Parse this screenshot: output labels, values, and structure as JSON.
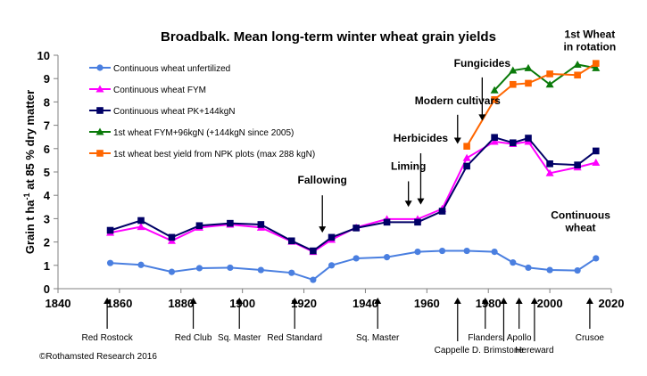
{
  "chart_data": {
    "type": "line",
    "title": "Broadbalk. Mean long-term winter wheat grain yields",
    "ylabel": "Grain t ha-1 at 85 % dry matter",
    "ylabel_main": "Grain t ha",
    "ylabel_sup": "-1",
    "ylabel_rest": " at 85 % dry matter",
    "xlabel": "",
    "xlim": [
      1840,
      2020
    ],
    "ylim": [
      0,
      10
    ],
    "xticks": [
      1840,
      1860,
      1880,
      1900,
      1920,
      1940,
      1960,
      1980,
      2000,
      2020
    ],
    "yticks": [
      0,
      1,
      2,
      3,
      4,
      5,
      6,
      7,
      8,
      9,
      10
    ],
    "legend_position": "top-left",
    "series": [
      {
        "name": "Continuous wheat unfertilized",
        "color": "#4a7fe0",
        "marker": "circle",
        "x": [
          1857,
          1867,
          1877,
          1886,
          1896,
          1906,
          1916,
          1923,
          1929,
          1937,
          1947,
          1957,
          1965,
          1973,
          1982,
          1988,
          1993,
          2000,
          2009,
          2015
        ],
        "y": [
          1.1,
          1.02,
          0.72,
          0.88,
          0.9,
          0.8,
          0.68,
          0.38,
          1.0,
          1.3,
          1.35,
          1.58,
          1.62,
          1.62,
          1.58,
          1.12,
          0.9,
          0.8,
          0.78,
          1.3
        ]
      },
      {
        "name": "Continuous wheat FYM",
        "color": "#ff00ff",
        "marker": "triangle",
        "x": [
          1857,
          1867,
          1877,
          1886,
          1896,
          1906,
          1916,
          1923,
          1929,
          1937,
          1947,
          1957,
          1965,
          1973,
          1982,
          1988,
          1993,
          2000,
          2009,
          2015
        ],
        "y": [
          2.4,
          2.65,
          2.05,
          2.62,
          2.75,
          2.62,
          2.02,
          1.58,
          2.1,
          2.62,
          2.98,
          2.98,
          3.42,
          5.6,
          6.3,
          6.2,
          6.3,
          4.95,
          5.2,
          5.4
        ]
      },
      {
        "name": "Continuous wheat PK+144kgN",
        "color": "#000066",
        "marker": "square",
        "x": [
          1857,
          1867,
          1877,
          1886,
          1896,
          1906,
          1916,
          1923,
          1929,
          1937,
          1947,
          1957,
          1965,
          1973,
          1982,
          1988,
          1993,
          2000,
          2009,
          2015
        ],
        "y": [
          2.5,
          2.92,
          2.2,
          2.7,
          2.8,
          2.75,
          2.05,
          1.62,
          2.2,
          2.6,
          2.85,
          2.85,
          3.32,
          5.25,
          6.48,
          6.25,
          6.45,
          5.35,
          5.3,
          5.9
        ]
      },
      {
        "name": "1st wheat FYM+96kgN (+144kgN since 2005)",
        "color": "#0a7a0a",
        "marker": "triangle",
        "x": [
          1982,
          1988,
          1993,
          2000,
          2009,
          2015
        ],
        "y": [
          8.5,
          9.35,
          9.45,
          8.75,
          9.6,
          9.45
        ]
      },
      {
        "name": "1st wheat best yield from NPK plots (max 288 kgN)",
        "color": "#ff6600",
        "marker": "square",
        "x": [
          1973,
          1982,
          1988,
          1993,
          2000,
          2009,
          2015
        ],
        "y": [
          6.1,
          8.1,
          8.75,
          8.8,
          9.2,
          9.15,
          9.65
        ]
      }
    ],
    "event_annotations": [
      {
        "label": "Fallowing",
        "year": 1926,
        "text_y": 4.5,
        "arrow_from": 4.0,
        "arrow_to": 2.4
      },
      {
        "label": "Liming",
        "year": 1954,
        "text_y": 5.1,
        "arrow_from": 4.6,
        "arrow_to": 3.5
      },
      {
        "label": "Herbicides",
        "year": 1958,
        "text_y": 6.3,
        "arrow_from": 5.8,
        "arrow_to": 3.6
      },
      {
        "label": "Modern cultivars",
        "year": 1970,
        "text_y": 7.9,
        "arrow_from": 7.45,
        "arrow_to": 6.2
      },
      {
        "label": "Fungicides",
        "year": 1978,
        "text_y": 9.5,
        "arrow_from": 9.05,
        "arrow_to": 7.2
      }
    ],
    "variety_labels": [
      {
        "label": "Red Rostock",
        "year": 1856,
        "row": 0
      },
      {
        "label": "Red Club",
        "year": 1884,
        "row": 0
      },
      {
        "label": "Sq. Master",
        "year": 1899,
        "row": 0
      },
      {
        "label": "Red Standard",
        "year": 1917,
        "row": 0
      },
      {
        "label": "Sq. Master",
        "year": 1944,
        "row": 0
      },
      {
        "label": "Cappelle D.",
        "year": 1970,
        "row": 1
      },
      {
        "label": "Flanders",
        "year": 1979,
        "row": 0
      },
      {
        "label": "Brimstone",
        "year": 1985,
        "row": 1
      },
      {
        "label": "Apollo",
        "year": 1990,
        "row": 0
      },
      {
        "label": "Hereward",
        "year": 1995,
        "row": 1
      },
      {
        "label": "Crusoe",
        "year": 2013,
        "row": 0
      }
    ],
    "series_annotations": [
      {
        "lines": [
          "1st Wheat",
          "in rotation"
        ],
        "year": 2013,
        "y": 10.75
      },
      {
        "lines": [
          "Continuous",
          "wheat"
        ],
        "year": 2010,
        "y": 3.0
      }
    ]
  },
  "copyright": "©Rothamsted Research 2016"
}
